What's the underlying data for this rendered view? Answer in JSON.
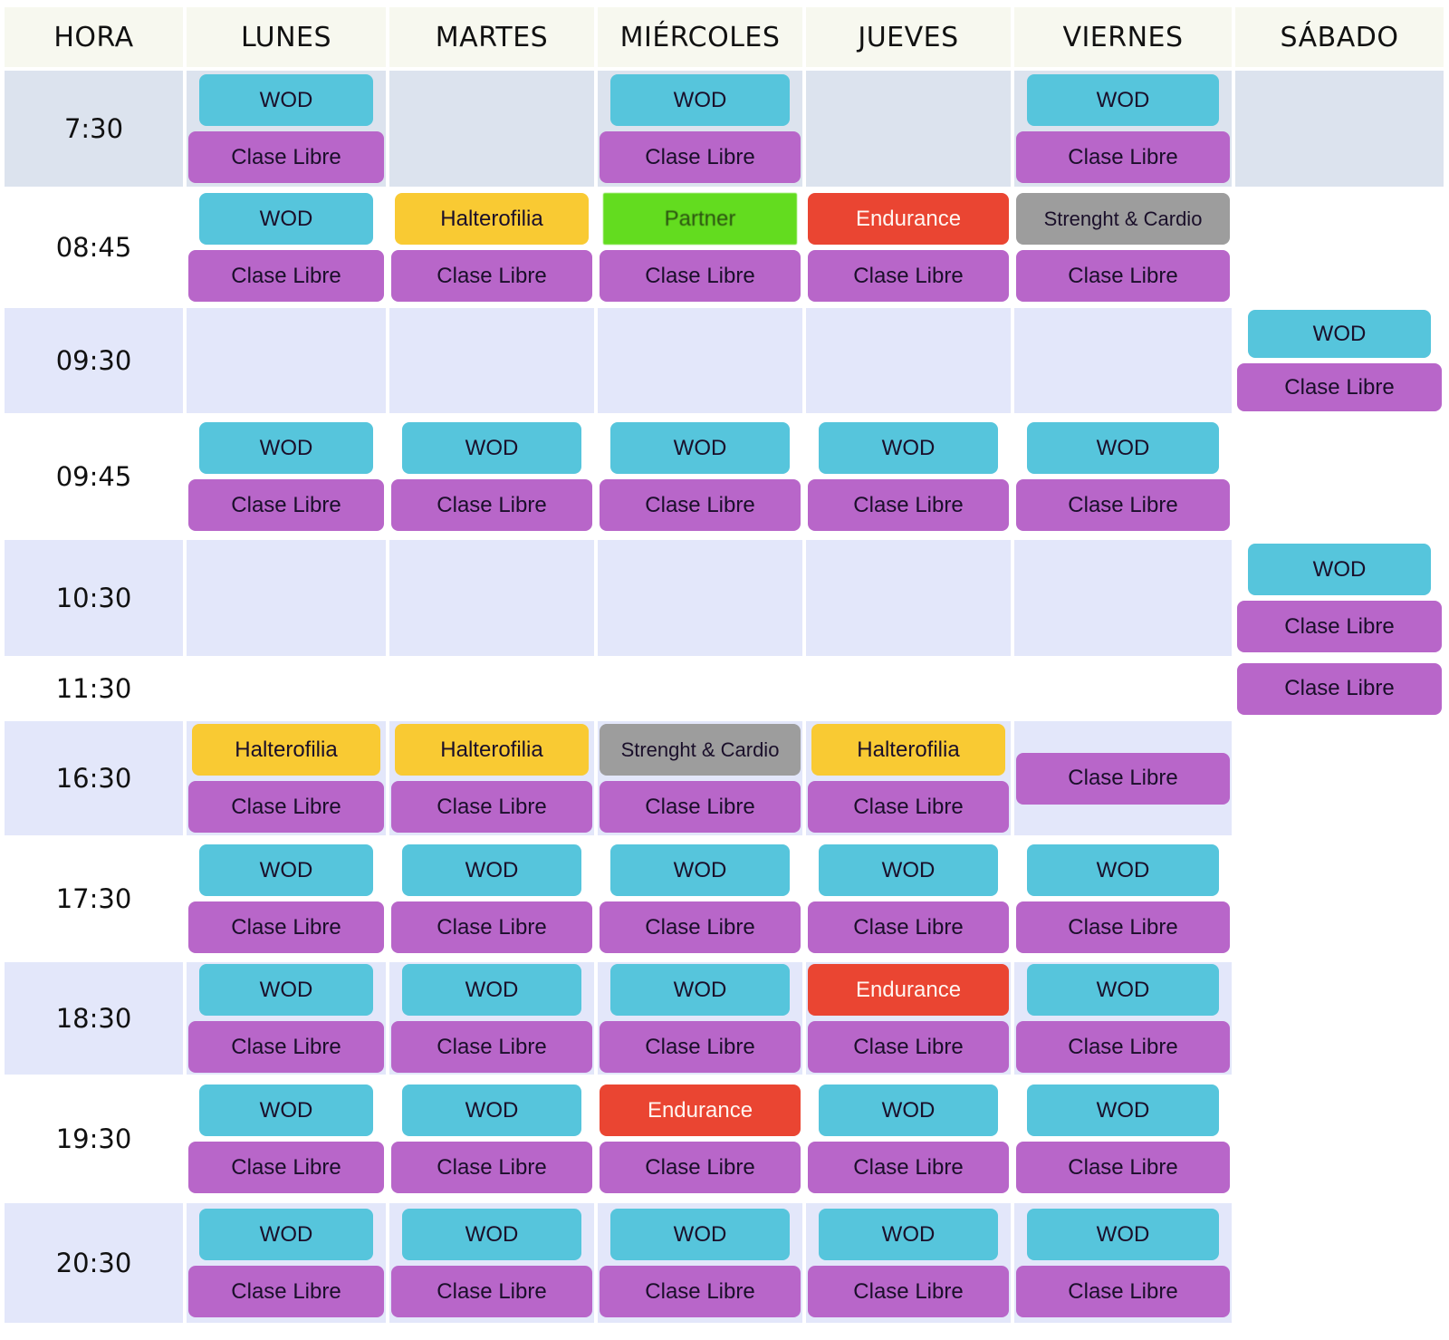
{
  "header": {
    "hora": "HORA",
    "days": [
      "LUNES",
      "MARTES",
      "MIÉRCOLES",
      "JUEVES",
      "VIERNES",
      "SÁBADO"
    ]
  },
  "class_colors": {
    "WOD": "#56c5dc",
    "Clase Libre": "#b866c9",
    "Halterofilia": "#f9ca33",
    "Partner": "#63dc1f",
    "Endurance": "#ea4532",
    "Strenght & Cardio": "#9d9d9d"
  },
  "rows": [
    {
      "time": "7:30",
      "slots": [
        [
          "WOD",
          "Clase Libre"
        ],
        [],
        [
          "WOD",
          "Clase Libre"
        ],
        [],
        [
          "WOD",
          "Clase Libre"
        ],
        []
      ]
    },
    {
      "time": "08:45",
      "slots": [
        [
          "WOD",
          "Clase Libre"
        ],
        [
          "Halterofilia",
          "Clase Libre"
        ],
        [
          "Partner",
          "Clase Libre"
        ],
        [
          "Endurance",
          "Clase Libre"
        ],
        [
          "Strenght & Cardio",
          "Clase Libre"
        ],
        []
      ]
    },
    {
      "time": "09:30",
      "slots": [
        [],
        [],
        [],
        [],
        [],
        [
          "WOD",
          "Clase Libre"
        ]
      ]
    },
    {
      "time": "09:45",
      "slots": [
        [
          "WOD",
          "Clase Libre"
        ],
        [
          "WOD",
          "Clase Libre"
        ],
        [
          "WOD",
          "Clase Libre"
        ],
        [
          "WOD",
          "Clase Libre"
        ],
        [
          "WOD",
          "Clase Libre"
        ],
        []
      ]
    },
    {
      "time": "10:30",
      "slots": [
        [],
        [],
        [],
        [],
        [],
        [
          "WOD",
          "Clase Libre"
        ]
      ]
    },
    {
      "time": "11:30",
      "slots": [
        [],
        [],
        [],
        [],
        [],
        [
          "Clase Libre"
        ]
      ]
    },
    {
      "time": "16:30",
      "slots": [
        [
          "Halterofilia",
          "Clase Libre"
        ],
        [
          "Halterofilia",
          "Clase Libre"
        ],
        [
          "Strenght & Cardio",
          "Clase Libre"
        ],
        [
          "Halterofilia",
          "Clase Libre"
        ],
        [
          "Clase Libre"
        ],
        []
      ]
    },
    {
      "time": "17:30",
      "slots": [
        [
          "WOD",
          "Clase Libre"
        ],
        [
          "WOD",
          "Clase Libre"
        ],
        [
          "WOD",
          "Clase Libre"
        ],
        [
          "WOD",
          "Clase Libre"
        ],
        [
          "WOD",
          "Clase Libre"
        ],
        []
      ]
    },
    {
      "time": "18:30",
      "slots": [
        [
          "WOD",
          "Clase Libre"
        ],
        [
          "WOD",
          "Clase Libre"
        ],
        [
          "WOD",
          "Clase Libre"
        ],
        [
          "Endurance",
          "Clase Libre"
        ],
        [
          "WOD",
          "Clase Libre"
        ],
        []
      ]
    },
    {
      "time": "19:30",
      "slots": [
        [
          "WOD",
          "Clase Libre"
        ],
        [
          "WOD",
          "Clase Libre"
        ],
        [
          "Endurance",
          "Clase Libre"
        ],
        [
          "WOD",
          "Clase Libre"
        ],
        [
          "WOD",
          "Clase Libre"
        ],
        []
      ]
    },
    {
      "time": "20:30",
      "slots": [
        [
          "WOD",
          "Clase Libre"
        ],
        [
          "WOD",
          "Clase Libre"
        ],
        [
          "WOD",
          "Clase Libre"
        ],
        [
          "WOD",
          "Clase Libre"
        ],
        [
          "WOD",
          "Clase Libre"
        ],
        []
      ]
    }
  ]
}
